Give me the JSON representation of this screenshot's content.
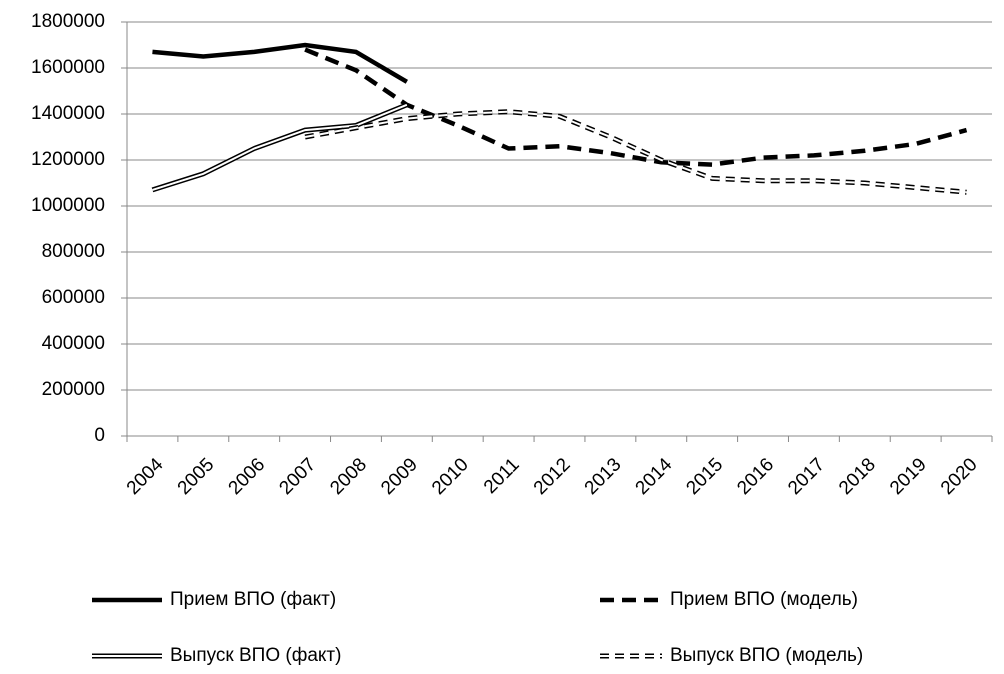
{
  "chart_data": {
    "type": "line",
    "categories": [
      "2004",
      "2005",
      "2006",
      "2007",
      "2008",
      "2009",
      "2010",
      "2011",
      "2012",
      "2013",
      "2014",
      "2015",
      "2016",
      "2017",
      "2018",
      "2019",
      "2020"
    ],
    "series": [
      {
        "name": "Прием ВПО (факт)",
        "color": "#000000",
        "dash": false,
        "double": false,
        "values": [
          1670000,
          1650000,
          1670000,
          1700000,
          1670000,
          1540000,
          null,
          null,
          null,
          null,
          null,
          null,
          null,
          null,
          null,
          null,
          null
        ]
      },
      {
        "name": "Прием ВПО (модель)",
        "color": "#000000",
        "dash": true,
        "double": false,
        "values": [
          null,
          null,
          null,
          1680000,
          1590000,
          1440000,
          1350000,
          1250000,
          1260000,
          1230000,
          1190000,
          1180000,
          1210000,
          1220000,
          1240000,
          1270000,
          1330000
        ]
      },
      {
        "name": "Выпуск ВПО (факт)",
        "color": "#000000",
        "dash": false,
        "double": true,
        "values": [
          1070000,
          1140000,
          1250000,
          1330000,
          1350000,
          1440000,
          null,
          null,
          null,
          null,
          null,
          null,
          null,
          null,
          null,
          null,
          null
        ]
      },
      {
        "name": "Выпуск ВПО (модель)",
        "color": "#000000",
        "dash": true,
        "double": true,
        "values": [
          null,
          null,
          null,
          1300000,
          1340000,
          1380000,
          1400000,
          1410000,
          1390000,
          1300000,
          1200000,
          1120000,
          1110000,
          1110000,
          1100000,
          1080000,
          1060000
        ]
      }
    ],
    "ylim": [
      0,
      1800000
    ],
    "yticks": [
      0,
      200000,
      400000,
      600000,
      800000,
      1000000,
      1200000,
      1400000,
      1600000,
      1800000
    ],
    "grid": true
  }
}
